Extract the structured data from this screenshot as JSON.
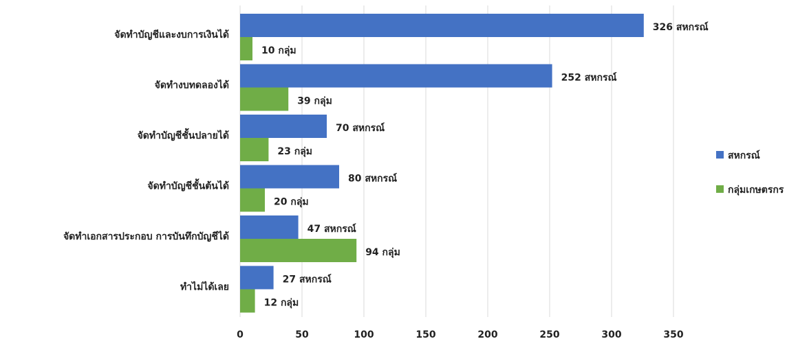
{
  "chart_data": {
    "type": "bar",
    "orientation": "horizontal",
    "categories": [
      "จัดทำบัญชีและงบการเงินได้",
      "จัดทำงบทดลองได้",
      "จัดทำบัญชีชั้นปลายได้",
      "จัดทำบัญชีชั้นต้นได้",
      "จัดทำเอกสารประกอบ  การบันทึกบัญชีได้",
      "ทำไม่ได้เลย"
    ],
    "series": [
      {
        "name": "สหกรณ์",
        "color": "#4472c4",
        "values": [
          326,
          252,
          70,
          80,
          47,
          27
        ],
        "labels": [
          "326 สหกรณ์",
          "252 สหกรณ์",
          "70 สหกรณ์",
          "80 สหกรณ์",
          "47 สหกรณ์",
          "27 สหกรณ์"
        ]
      },
      {
        "name": "กลุ่มเกษตรกร",
        "color": "#70ad47",
        "values": [
          10,
          39,
          23,
          20,
          94,
          12
        ],
        "labels": [
          "10 กลุ่ม",
          "39 กลุ่ม",
          "23 กลุ่ม",
          "20 กลุ่ม",
          "94 กลุ่ม",
          "12 กลุ่ม"
        ]
      }
    ],
    "xlim": [
      0,
      350
    ],
    "xticks": [
      "0",
      "50",
      "100",
      "150",
      "200",
      "250",
      "300",
      "350"
    ],
    "title": "",
    "xlabel": "",
    "ylabel": "",
    "grid": true,
    "legend_position": "right"
  }
}
